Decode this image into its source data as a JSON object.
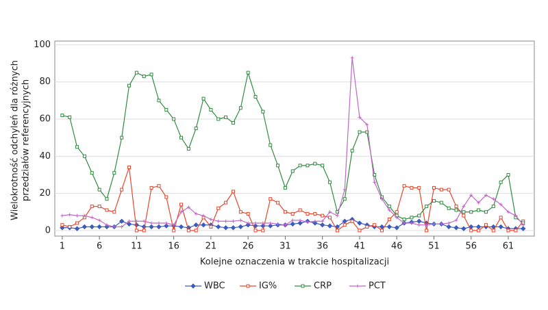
{
  "chart_data": {
    "type": "line",
    "y_label": [
      "Wielokrotność odchyleń dla różnych",
      "przedziałów referencyjnych"
    ],
    "x_label": "Kolejne oznaczenia w trakcie hospitalizacji",
    "x": [
      1,
      2,
      3,
      4,
      5,
      6,
      7,
      8,
      9,
      10,
      11,
      12,
      13,
      14,
      15,
      16,
      17,
      18,
      19,
      20,
      21,
      22,
      23,
      24,
      25,
      26,
      27,
      28,
      29,
      30,
      31,
      32,
      33,
      34,
      35,
      36,
      37,
      38,
      39,
      40,
      41,
      42,
      43,
      44,
      45,
      46,
      47,
      48,
      49,
      50,
      51,
      52,
      53,
      54,
      55,
      56,
      57,
      58,
      59,
      60,
      61,
      62,
      63
    ],
    "xlim": [
      0,
      64.5
    ],
    "xticks": [
      1,
      6,
      11,
      16,
      21,
      26,
      31,
      36,
      41,
      46,
      51,
      56,
      61
    ],
    "ylim": [
      -3,
      102
    ],
    "yticks": [
      0,
      20,
      40,
      60,
      80,
      100
    ],
    "grid": true,
    "legend": "bottom",
    "series": [
      {
        "name": "WBC",
        "color": "#3a5bbf",
        "marker": "diamond",
        "values": [
          1.5,
          1.5,
          1,
          2,
          2,
          2,
          2,
          2,
          5,
          3.5,
          3,
          2,
          2,
          2,
          2.5,
          2.5,
          2,
          1.5,
          3,
          3,
          3,
          2,
          1.5,
          1.5,
          2,
          3,
          2.5,
          2.5,
          2.5,
          3,
          3,
          3.5,
          4,
          5,
          4,
          3,
          2.5,
          2,
          5,
          6,
          4,
          3,
          2,
          2,
          2,
          1.5,
          4,
          4.5,
          5,
          4,
          3.5,
          3.5,
          2,
          1.5,
          1,
          2,
          2,
          2,
          2,
          2,
          1,
          1,
          1
        ]
      },
      {
        "name": "IG%",
        "color": "#e8442a",
        "marker": "square",
        "values": [
          3,
          2,
          4,
          7,
          13,
          13,
          11,
          10,
          22,
          34,
          0,
          0,
          23,
          24,
          18,
          0,
          14,
          0,
          0,
          7,
          2,
          12,
          15,
          21,
          10,
          9,
          0,
          0,
          17,
          15,
          10,
          9,
          11,
          9,
          9,
          8,
          7,
          0,
          3,
          5,
          0,
          2,
          3,
          0,
          6,
          10,
          24,
          23,
          23,
          0,
          23,
          22,
          22,
          13,
          8,
          0,
          0,
          3,
          0,
          7,
          0,
          0,
          5
        ]
      },
      {
        "name": "CRP",
        "color": "#2e8b3e",
        "marker": "square",
        "values": [
          62,
          61,
          45,
          40,
          31,
          22,
          17,
          31,
          50,
          78,
          85,
          83,
          84,
          70,
          65,
          60,
          50,
          44,
          55,
          71,
          65,
          60,
          61,
          58,
          66,
          85,
          72,
          64,
          46,
          35,
          23,
          32,
          35,
          35,
          36,
          35,
          26,
          10,
          17,
          43,
          53,
          53,
          30,
          18,
          13,
          8,
          6,
          7,
          8,
          13,
          16,
          15,
          12,
          11,
          10,
          10,
          11,
          10,
          13,
          26,
          30,
          7,
          4
        ]
      },
      {
        "name": "PCT",
        "color": "#c266c8",
        "marker": "plus",
        "values": [
          8,
          8.5,
          8,
          8,
          7,
          5.5,
          3,
          2,
          2,
          5,
          5,
          5,
          4,
          4,
          4,
          3,
          10,
          12.5,
          9,
          8,
          6,
          5,
          5,
          5,
          5.5,
          4,
          4,
          4,
          4,
          3.5,
          3,
          5.5,
          5.5,
          4.5,
          5,
          5,
          10,
          8,
          22,
          93,
          61,
          57,
          26,
          17,
          11,
          7,
          4,
          4,
          3,
          3,
          3.5,
          3.5,
          4,
          5.5,
          13,
          19,
          15,
          19,
          17,
          14,
          10,
          8,
          3
        ]
      }
    ]
  }
}
